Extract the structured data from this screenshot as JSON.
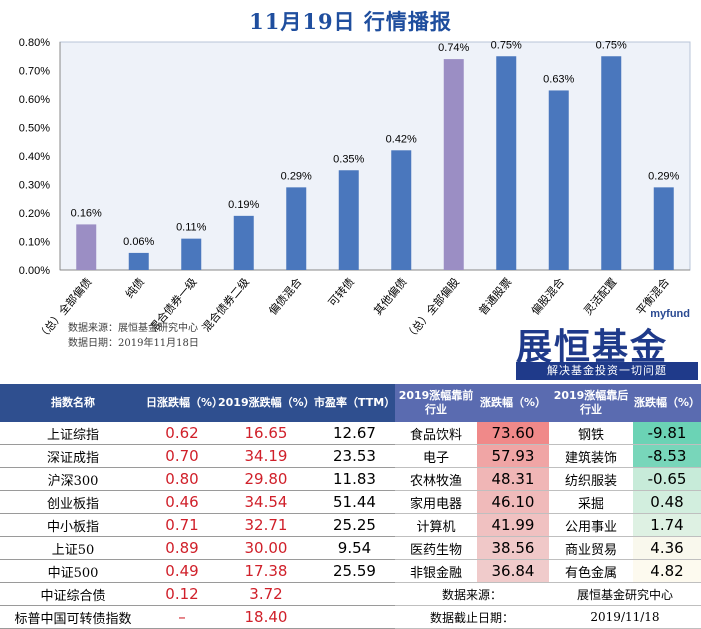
{
  "title": "11月19日 行情播报",
  "chart_data": {
    "type": "bar",
    "categories": [
      "（总）全部偏债",
      "纯债",
      "混合债券一级",
      "混合债券二级",
      "偏债混合",
      "可转债",
      "其他偏债",
      "（总）全部偏股",
      "普通股票",
      "偏股混合",
      "灵活配置",
      "平衡混合"
    ],
    "values": [
      0.16,
      0.06,
      0.11,
      0.19,
      0.29,
      0.35,
      0.42,
      0.74,
      0.75,
      0.63,
      0.75,
      0.29
    ],
    "value_labels": [
      "0.16%",
      "0.06%",
      "0.11%",
      "0.19%",
      "0.29%",
      "0.35%",
      "0.42%",
      "0.74%",
      "0.75%",
      "0.63%",
      "0.75%",
      "0.29%"
    ],
    "highlight": [
      0,
      7
    ],
    "colors": {
      "normal": "#4a77bd",
      "highlight": "#9b8ec4",
      "plot_bg": "#eef2f9"
    },
    "ylim": [
      0,
      0.8
    ],
    "yticks": [
      "0.00%",
      "0.10%",
      "0.20%",
      "0.30%",
      "0.40%",
      "0.50%",
      "0.60%",
      "0.70%",
      "0.80%"
    ],
    "grid": false
  },
  "source_lines": [
    "数据来源：展恒基金研究中心",
    "数据日期：2019年11月18日"
  ],
  "logo": {
    "en": "myfund",
    "cn": "展恒基金",
    "tagline": "解决基金投资一切问题"
  },
  "left_table": {
    "headers": [
      "指数名称",
      "日涨跌幅（%）",
      "2019涨跌幅（%）",
      "市盈率（TTM）"
    ],
    "rows": [
      [
        "上证综指",
        "0.62",
        "16.65",
        "12.67"
      ],
      [
        "深证成指",
        "0.70",
        "34.19",
        "23.53"
      ],
      [
        "沪深300",
        "0.80",
        "29.80",
        "11.83"
      ],
      [
        "创业板指",
        "0.46",
        "34.54",
        "51.44"
      ],
      [
        "中小板指",
        "0.71",
        "32.71",
        "25.25"
      ],
      [
        "上证50",
        "0.89",
        "30.00",
        "9.54"
      ],
      [
        "中证500",
        "0.49",
        "17.38",
        "25.59"
      ],
      [
        "中证综合债",
        "0.12",
        "3.72",
        ""
      ],
      [
        "标普中国可转债指数",
        "–",
        "18.40",
        ""
      ]
    ]
  },
  "right_table": {
    "headers": [
      "2019涨幅靠前行业",
      "涨跌幅（%）",
      "2019涨幅靠后行业",
      "涨跌幅（%）"
    ],
    "rows": [
      [
        "食品饮料",
        "73.60",
        "钢铁",
        "-9.81"
      ],
      [
        "电子",
        "57.93",
        "建筑装饰",
        "-8.53"
      ],
      [
        "农林牧渔",
        "48.31",
        "纺织服装",
        "-0.65"
      ],
      [
        "家用电器",
        "46.10",
        "采掘",
        "0.48"
      ],
      [
        "计算机",
        "41.99",
        "公用事业",
        "1.74"
      ],
      [
        "医药生物",
        "38.56",
        "商业贸易",
        "4.36"
      ],
      [
        "非银金融",
        "36.84",
        "有色金属",
        "4.82"
      ]
    ],
    "meta": [
      [
        "数据来源：",
        "展恒基金研究中心"
      ],
      [
        "数据截止日期：",
        "2019/11/18"
      ]
    ]
  }
}
